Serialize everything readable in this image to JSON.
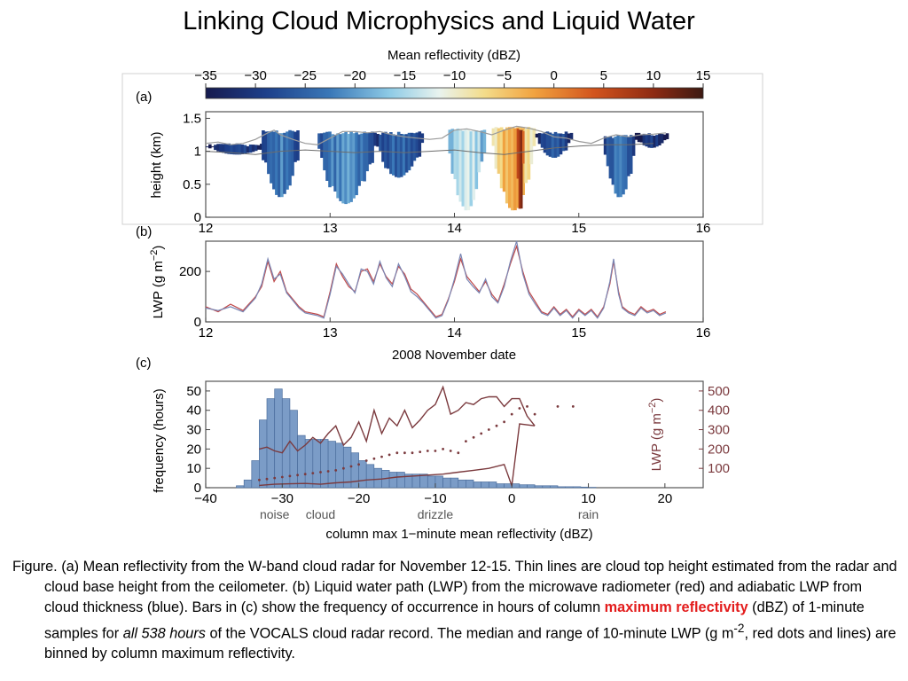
{
  "slide": {
    "title": "Linking Cloud Microphysics and Liquid Water"
  },
  "colorbar": {
    "label": "Mean reflectivity (dBZ)",
    "ticks": [
      "−35",
      "−30",
      "−25",
      "−20",
      "−15",
      "−10",
      "−5",
      "0",
      "5",
      "10",
      "15"
    ],
    "range": [
      -35,
      15
    ]
  },
  "caption": {
    "p1": "Figure. (a) Mean reflectivity from the W-band cloud radar for November 12-15. Thin lines are cloud top height estimated from the radar and cloud base height from the ceilometer. (b) Liquid water path (LWP) from the microwave radiometer (red) and adiabatic LWP from cloud thickness (blue). Bars in (c) show the frequency of occurrence in hours of column ",
    "highlight": "maximum reflectivity",
    "p2": " (dBZ) of 1-minute samples for ",
    "italic": "all 538 hours",
    "p3": " of the VOCALS cloud radar record. The median and range of 10-minute LWP (g m",
    "sup": "-2",
    "p4": ", red dots and lines) are binned by column maximum reflectivity."
  },
  "chart_data": [
    {
      "panel": "(a)",
      "type": "heatmap",
      "ylabel": "height (km)",
      "xlabel": "",
      "x_ticks": [
        "12",
        "13",
        "14",
        "15",
        "16"
      ],
      "y_ticks": [
        "0",
        "0.5",
        "1",
        "1.5"
      ],
      "xlim": [
        12,
        16
      ],
      "ylim": [
        0,
        1.6
      ],
      "cloud_top_line": {
        "x": [
          12.0,
          12.1,
          12.2,
          12.3,
          12.4,
          12.5,
          12.55,
          12.6,
          12.7,
          12.8,
          12.9,
          13.0,
          13.1,
          13.2,
          13.3,
          13.4,
          13.5,
          13.6,
          13.7,
          13.8,
          13.9,
          14.0,
          14.1,
          14.2,
          14.3,
          14.4,
          14.5,
          14.6,
          14.7,
          14.8,
          14.9,
          15.0,
          15.1,
          15.2,
          15.3,
          15.4,
          15.5,
          15.6,
          15.7
        ],
        "y": [
          1.12,
          1.14,
          1.1,
          1.12,
          1.18,
          1.28,
          1.32,
          1.25,
          1.18,
          1.12,
          1.1,
          1.2,
          1.3,
          1.3,
          1.28,
          1.3,
          1.25,
          1.22,
          1.2,
          1.18,
          1.2,
          1.32,
          1.34,
          1.3,
          1.25,
          1.32,
          1.38,
          1.35,
          1.3,
          1.22,
          1.2,
          1.15,
          1.12,
          1.2,
          1.25,
          1.22,
          1.25,
          1.26,
          1.28
        ]
      },
      "cloud_base_line": {
        "x": [
          12.0,
          12.2,
          12.4,
          12.6,
          12.8,
          13.0,
          13.2,
          13.4,
          13.6,
          13.8,
          14.0,
          14.2,
          14.4,
          14.6,
          14.8,
          15.0,
          15.2,
          15.4,
          15.6
        ],
        "y": [
          1.0,
          0.98,
          0.95,
          1.0,
          1.02,
          1.0,
          0.98,
          1.0,
          0.98,
          1.0,
          1.02,
          0.98,
          0.95,
          1.0,
          1.05,
          1.08,
          1.1,
          1.1,
          1.12
        ]
      },
      "cloud_cells": [
        {
          "x0": 12.0,
          "x1": 12.5,
          "top": 1.12,
          "base": 0.95,
          "dbz": -28
        },
        {
          "x0": 12.45,
          "x1": 12.75,
          "top": 1.32,
          "base": 0.3,
          "dbz": -22
        },
        {
          "x0": 12.9,
          "x1": 13.35,
          "top": 1.3,
          "base": 0.2,
          "dbz": -20
        },
        {
          "x0": 13.35,
          "x1": 13.75,
          "top": 1.3,
          "base": 0.6,
          "dbz": -24
        },
        {
          "x0": 13.95,
          "x1": 14.25,
          "top": 1.35,
          "base": 0.1,
          "dbz": -12
        },
        {
          "x0": 14.3,
          "x1": 14.65,
          "top": 1.38,
          "base": 0.1,
          "dbz": -3
        },
        {
          "x0": 14.5,
          "x1": 14.56,
          "top": 1.35,
          "base": 0.05,
          "dbz": 10
        },
        {
          "x0": 14.65,
          "x1": 14.95,
          "top": 1.3,
          "base": 0.9,
          "dbz": -26
        },
        {
          "x0": 15.2,
          "x1": 15.45,
          "top": 1.25,
          "base": 0.3,
          "dbz": -22
        },
        {
          "x0": 15.45,
          "x1": 15.72,
          "top": 1.28,
          "base": 1.05,
          "dbz": -30
        }
      ]
    },
    {
      "panel": "(b)",
      "type": "line",
      "xlabel": "2008 November date",
      "ylabel": "LWP  (g m",
      "ylabel_sup": "−2",
      "ylabel_end": ")",
      "x_ticks": [
        "12",
        "13",
        "14",
        "15",
        "16"
      ],
      "y_ticks": [
        "0",
        "200"
      ],
      "xlim": [
        12,
        16
      ],
      "ylim": [
        0,
        320
      ],
      "series": [
        {
          "name": "microwave radiometer",
          "color": "#c04a4a",
          "x": [
            12.0,
            12.1,
            12.2,
            12.3,
            12.4,
            12.45,
            12.5,
            12.55,
            12.6,
            12.65,
            12.7,
            12.75,
            12.8,
            12.9,
            12.95,
            13.0,
            13.05,
            13.1,
            13.15,
            13.2,
            13.25,
            13.3,
            13.35,
            13.4,
            13.45,
            13.5,
            13.55,
            13.6,
            13.65,
            13.7,
            13.75,
            13.8,
            13.85,
            13.9,
            13.95,
            14.0,
            14.05,
            14.1,
            14.15,
            14.2,
            14.25,
            14.3,
            14.35,
            14.4,
            14.45,
            14.5,
            14.55,
            14.6,
            14.65,
            14.7,
            14.75,
            14.8,
            14.85,
            14.9,
            14.95,
            15.0,
            15.05,
            15.1,
            15.15,
            15.2,
            15.25,
            15.28,
            15.32,
            15.35,
            15.4,
            15.45,
            15.5,
            15.55,
            15.6,
            15.65,
            15.7
          ],
          "y": [
            60,
            40,
            70,
            45,
            100,
            140,
            240,
            160,
            200,
            120,
            90,
            60,
            40,
            30,
            20,
            120,
            230,
            180,
            140,
            120,
            200,
            210,
            160,
            230,
            180,
            150,
            220,
            190,
            130,
            110,
            80,
            50,
            20,
            30,
            90,
            160,
            250,
            180,
            150,
            120,
            160,
            110,
            80,
            150,
            230,
            300,
            200,
            120,
            80,
            40,
            30,
            60,
            30,
            50,
            20,
            50,
            30,
            50,
            20,
            60,
            150,
            240,
            120,
            60,
            40,
            30,
            60,
            40,
            50,
            30,
            40
          ]
        },
        {
          "name": "adiabatic LWP",
          "color": "#7a86b4",
          "x": [
            12.0,
            12.1,
            12.2,
            12.3,
            12.4,
            12.45,
            12.5,
            12.55,
            12.6,
            12.65,
            12.7,
            12.75,
            12.8,
            12.9,
            12.95,
            13.0,
            13.05,
            13.1,
            13.15,
            13.2,
            13.25,
            13.3,
            13.35,
            13.4,
            13.45,
            13.5,
            13.55,
            13.6,
            13.65,
            13.7,
            13.75,
            13.8,
            13.85,
            13.9,
            13.95,
            14.0,
            14.05,
            14.1,
            14.15,
            14.2,
            14.25,
            14.3,
            14.35,
            14.4,
            14.45,
            14.5,
            14.55,
            14.6,
            14.65,
            14.7,
            14.75,
            14.8,
            14.85,
            14.9,
            14.95,
            15.0,
            15.05,
            15.1,
            15.15,
            15.2,
            15.25,
            15.28,
            15.32,
            15.35,
            15.4,
            15.45,
            15.5,
            15.55,
            15.6,
            15.65,
            15.7
          ],
          "y": [
            55,
            45,
            60,
            40,
            95,
            150,
            250,
            170,
            190,
            115,
            85,
            55,
            35,
            25,
            15,
            110,
            220,
            190,
            150,
            115,
            210,
            200,
            150,
            240,
            175,
            140,
            230,
            180,
            120,
            100,
            75,
            45,
            15,
            25,
            85,
            170,
            270,
            170,
            140,
            115,
            170,
            100,
            75,
            140,
            240,
            320,
            190,
            110,
            70,
            35,
            25,
            55,
            25,
            45,
            15,
            45,
            25,
            45,
            15,
            55,
            160,
            250,
            110,
            55,
            35,
            25,
            55,
            35,
            45,
            25,
            35
          ]
        }
      ]
    },
    {
      "panel": "(c)",
      "type": "bar",
      "xlabel": "column max 1−minute mean reflectivity (dBZ)",
      "ylabel": "frequency (hours)",
      "ylabel_right": "LWP  (g m",
      "ylabel_right_sup": "−2",
      "ylabel_right_end": ")",
      "x_ticks": [
        "−40",
        "−30",
        "−20",
        "−10",
        "0",
        "10",
        "20"
      ],
      "y_ticks": [
        "0",
        "10",
        "20",
        "30",
        "40",
        "50"
      ],
      "y2_ticks": [
        "100",
        "200",
        "300",
        "400",
        "500"
      ],
      "xlim": [
        -40,
        25
      ],
      "ylim": [
        0,
        55
      ],
      "y2lim": [
        0,
        550
      ],
      "regime_labels": [
        {
          "text": "noise",
          "x": -31
        },
        {
          "text": "cloud",
          "x": -25
        },
        {
          "text": "drizzle",
          "x": -10
        },
        {
          "text": "rain",
          "x": 10
        }
      ],
      "bin_width": 1,
      "bin_left_edges": [
        -36,
        -35,
        -34,
        -33,
        -32,
        -31,
        -30,
        -29,
        -28,
        -27,
        -26,
        -25,
        -24,
        -23,
        -22,
        -21,
        -20,
        -19,
        -18,
        -17,
        -16,
        -15,
        -14,
        -13,
        -12,
        -11,
        -10,
        -9,
        -8,
        -7,
        -6,
        -5,
        -4,
        -3,
        -2,
        -1,
        0,
        1,
        2,
        3,
        4,
        5,
        6,
        7,
        8,
        9,
        10
      ],
      "values": [
        1,
        4,
        14,
        35,
        46,
        51,
        46,
        40,
        27,
        25,
        25,
        25,
        24,
        23,
        21,
        18,
        14,
        12,
        10,
        9,
        8,
        8,
        7,
        7,
        7,
        6,
        6,
        5,
        5,
        4,
        4,
        3,
        3,
        3,
        2,
        2,
        2,
        1.5,
        1.5,
        1,
        1,
        1,
        0.5,
        0.5,
        0.5,
        0.3,
        0.2
      ],
      "bar_color": "#7b9cc7",
      "lwp_series": [
        {
          "name": "",
          "color": "#7b3a3e",
          "x": [
            -33,
            -31,
            -29,
            -27,
            -25,
            -23,
            -21,
            -19,
            -17,
            -15,
            -13,
            -11,
            -9,
            -7,
            -5,
            -3,
            -1,
            0,
            1,
            3
          ],
          "y": [
            12,
            18,
            20,
            22,
            18,
            25,
            30,
            40,
            45,
            55,
            60,
            65,
            70,
            80,
            90,
            100,
            120,
            10,
            330,
            320
          ]
        },
        {
          "name": "",
          "color": "#7b3a3e",
          "x": [
            -33,
            -32,
            -31,
            -30,
            -29,
            -28,
            -27,
            -26,
            -25,
            -24,
            -23,
            -22,
            -21,
            -20,
            -19,
            -18,
            -17,
            -16,
            -15,
            -14,
            -13,
            -12,
            -11,
            -10,
            -9,
            -8,
            -7,
            -6,
            -5,
            -4,
            -3,
            -2,
            -1,
            0,
            1,
            2,
            3
          ],
          "y": [
            200,
            210,
            190,
            180,
            240,
            190,
            220,
            260,
            230,
            280,
            320,
            220,
            260,
            340,
            240,
            400,
            280,
            360,
            320,
            400,
            310,
            350,
            400,
            430,
            520,
            380,
            400,
            440,
            430,
            460,
            470,
            470,
            420,
            460,
            460,
            370,
            320
          ]
        }
      ],
      "lwp_median_dots": {
        "color": "#7b3a3e",
        "x": [
          -33,
          -32,
          -31,
          -30,
          -29,
          -28,
          -27,
          -26,
          -25,
          -24,
          -23,
          -22,
          -21,
          -20,
          -19,
          -18,
          -17,
          -16,
          -15,
          -14,
          -13,
          -12,
          -11,
          -10,
          -9,
          -8,
          -7,
          -6,
          -5,
          -4,
          -3,
          -2,
          -1,
          0,
          1,
          2,
          3,
          6,
          8
        ],
        "y": [
          40,
          45,
          50,
          55,
          60,
          65,
          70,
          75,
          80,
          85,
          90,
          100,
          110,
          120,
          140,
          150,
          160,
          170,
          180,
          180,
          180,
          185,
          190,
          190,
          200,
          190,
          180,
          240,
          260,
          280,
          300,
          320,
          340,
          380,
          410,
          420,
          380,
          420,
          420
        ]
      }
    }
  ]
}
